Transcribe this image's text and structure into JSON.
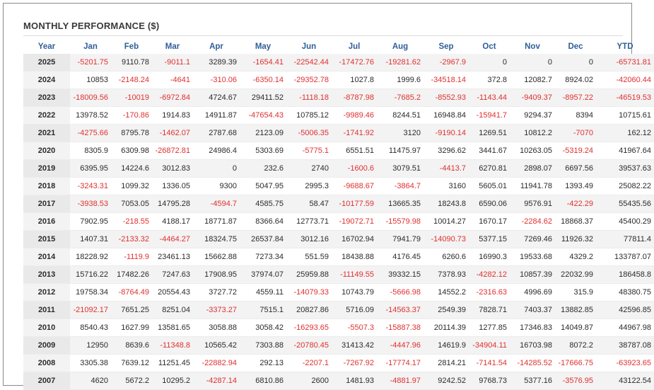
{
  "title": "MONTHLY PERFORMANCE ($)",
  "columns": [
    "Year",
    "Jan",
    "Feb",
    "Mar",
    "Apr",
    "May",
    "Jun",
    "Jul",
    "Aug",
    "Sep",
    "Oct",
    "Nov",
    "Dec",
    "YTD"
  ],
  "rows": [
    [
      "2025",
      "-5201.75",
      "9110.78",
      "-9011.1",
      "3289.39",
      "-1654.41",
      "-22542.44",
      "-17472.76",
      "-19281.62",
      "-2967.9",
      "0",
      "0",
      "0",
      "-65731.81"
    ],
    [
      "2024",
      "10853",
      "-2148.24",
      "-4641",
      "-310.06",
      "-6350.14",
      "-29352.78",
      "1027.8",
      "1999.6",
      "-34518.14",
      "372.8",
      "12082.7",
      "8924.02",
      "-42060.44"
    ],
    [
      "2023",
      "-18009.56",
      "-10019",
      "-6972.84",
      "4724.67",
      "29411.52",
      "-1118.18",
      "-8787.98",
      "-7685.2",
      "-8552.93",
      "-1143.44",
      "-9409.37",
      "-8957.22",
      "-46519.53"
    ],
    [
      "2022",
      "13978.52",
      "-170.86",
      "1914.83",
      "14911.87",
      "-47654.43",
      "10785.12",
      "-9989.46",
      "8244.51",
      "16948.84",
      "-15941.7",
      "9294.37",
      "8394",
      "10715.61"
    ],
    [
      "2021",
      "-4275.66",
      "8795.78",
      "-1462.07",
      "2787.68",
      "2123.09",
      "-5006.35",
      "-1741.92",
      "3120",
      "-9190.14",
      "1269.51",
      "10812.2",
      "-7070",
      "162.12"
    ],
    [
      "2020",
      "8305.9",
      "6309.98",
      "-26872.81",
      "24986.4",
      "5303.69",
      "-5775.1",
      "6551.51",
      "11475.97",
      "3296.62",
      "3441.67",
      "10263.05",
      "-5319.24",
      "41967.64"
    ],
    [
      "2019",
      "6395.95",
      "14224.6",
      "3012.83",
      "0",
      "232.6",
      "2740",
      "-1600.6",
      "3079.51",
      "-4413.7",
      "6270.81",
      "2898.07",
      "6697.56",
      "39537.63"
    ],
    [
      "2018",
      "-3243.31",
      "1099.32",
      "1336.05",
      "9300",
      "5047.95",
      "2995.3",
      "-9688.67",
      "-3864.7",
      "3160",
      "5605.01",
      "11941.78",
      "1393.49",
      "25082.22"
    ],
    [
      "2017",
      "-3938.53",
      "7053.05",
      "14795.28",
      "-4594.7",
      "4585.75",
      "58.47",
      "-10177.59",
      "13665.35",
      "18243.8",
      "6590.06",
      "9576.91",
      "-422.29",
      "55435.56"
    ],
    [
      "2016",
      "7902.95",
      "-218.55",
      "4188.17",
      "18771.87",
      "8366.64",
      "12773.71",
      "-19072.71",
      "-15579.98",
      "10014.27",
      "1670.17",
      "-2284.62",
      "18868.37",
      "45400.29"
    ],
    [
      "2015",
      "1407.31",
      "-2133.32",
      "-4464.27",
      "18324.75",
      "26537.84",
      "3012.16",
      "16702.94",
      "7941.79",
      "-14090.73",
      "5377.15",
      "7269.46",
      "11926.32",
      "77811.4"
    ],
    [
      "2014",
      "18228.92",
      "-1119.9",
      "23461.13",
      "15662.88",
      "7273.34",
      "551.59",
      "18438.88",
      "4176.45",
      "6260.6",
      "16990.3",
      "19533.68",
      "4329.2",
      "133787.07"
    ],
    [
      "2013",
      "15716.22",
      "17482.26",
      "7247.63",
      "17908.95",
      "37974.07",
      "25959.88",
      "-11149.55",
      "39332.15",
      "7378.93",
      "-4282.12",
      "10857.39",
      "22032.99",
      "186458.8"
    ],
    [
      "2012",
      "19758.34",
      "-8764.49",
      "20554.43",
      "3727.72",
      "4559.11",
      "-14079.33",
      "10743.79",
      "-5666.98",
      "14552.2",
      "-2316.63",
      "4996.69",
      "315.9",
      "48380.75"
    ],
    [
      "2011",
      "-21092.17",
      "7651.25",
      "8251.04",
      "-3373.27",
      "7515.1",
      "20827.86",
      "5716.09",
      "-14563.37",
      "2549.39",
      "7828.71",
      "7403.37",
      "13882.85",
      "42596.85"
    ],
    [
      "2010",
      "8540.43",
      "1627.99",
      "13581.65",
      "3058.88",
      "3058.42",
      "-16293.65",
      "-5507.3",
      "-15887.38",
      "20114.39",
      "1277.85",
      "17346.83",
      "14049.87",
      "44967.98"
    ],
    [
      "2009",
      "12950",
      "8639.6",
      "-11348.8",
      "10565.42",
      "7303.88",
      "-20780.45",
      "31413.42",
      "-4447.96",
      "14619.9",
      "-34904.11",
      "16703.98",
      "8072.2",
      "38787.08"
    ],
    [
      "2008",
      "3305.38",
      "7639.12",
      "11251.45",
      "-22882.94",
      "292.13",
      "-2207.1",
      "-7267.92",
      "-17774.17",
      "2814.21",
      "-7141.54",
      "-14285.52",
      "-17666.75",
      "-63923.65"
    ],
    [
      "2007",
      "4620",
      "5672.2",
      "10295.2",
      "-4287.14",
      "6810.86",
      "2600",
      "1481.93",
      "-4881.97",
      "9242.52",
      "9768.73",
      "5377.16",
      "-3576.95",
      "43122.54"
    ]
  ],
  "colors": {
    "header": "#2f5f98",
    "negative": "#e03030",
    "positive": "#2b2b2b"
  }
}
